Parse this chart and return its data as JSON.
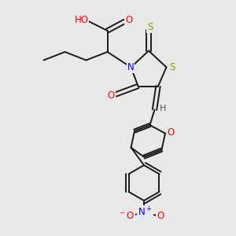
{
  "background_color": "#e8e8e8",
  "bond_color": "#1a1a1a",
  "atom_colors": {
    "O": "#ff0000",
    "N": "#0000ff",
    "S": "#999900",
    "H": "#555555",
    "C": "#1a1a1a"
  }
}
